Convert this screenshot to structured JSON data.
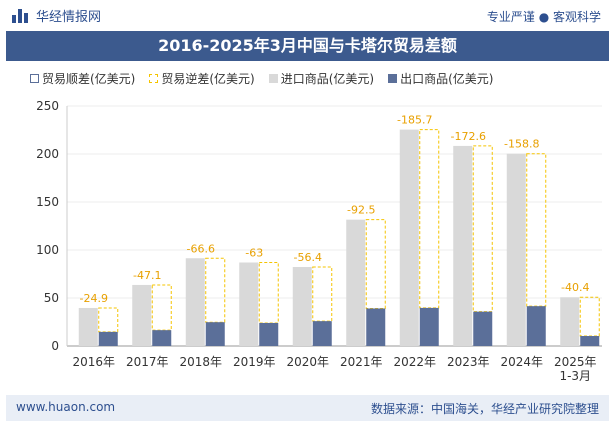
{
  "header": {
    "brand": "华经情报网",
    "tagline": "专业严谨 ● 客观科学",
    "title": "2016-2025年3月中国与卡塔尔贸易差额"
  },
  "footer": {
    "website": "www.huaon.com",
    "source": "数据来源：中国海关，华经产业研究院整理"
  },
  "colors": {
    "header_bar": "#3c5a8e",
    "import_bar": "#d9d9d9",
    "export_bar": "#5b6f99",
    "deficit_dash": "#f5c400",
    "label_text": "#e8a000"
  },
  "chart_data": {
    "type": "bar",
    "title": "2016-2025年3月中国与卡塔尔贸易差额",
    "categories": [
      "2016年",
      "2017年",
      "2018年",
      "2019年",
      "2020年",
      "2021年",
      "2022年",
      "2023年",
      "2024年",
      "2025年\n1-3月"
    ],
    "yticks": [
      0,
      50,
      100,
      150,
      200,
      250
    ],
    "ylim": [
      0,
      250
    ],
    "legend_position": "top",
    "series": [
      {
        "name": "贸易顺差(亿美元)",
        "values": [
          null,
          null,
          null,
          null,
          null,
          null,
          null,
          null,
          null,
          null
        ]
      },
      {
        "name": "贸易逆差(亿美元)",
        "values": [
          -24.9,
          -47.1,
          -66.6,
          -63,
          -56.4,
          -92.5,
          -185.7,
          -172.6,
          -158.8,
          -40.4
        ]
      },
      {
        "name": "进口商品(亿美元)",
        "values": [
          39.6,
          63.6,
          91.4,
          87.0,
          82.3,
          131.6,
          225.4,
          208.4,
          200.3,
          50.8
        ]
      },
      {
        "name": "出口商品(亿美元)",
        "values": [
          14.7,
          16.5,
          24.8,
          24.0,
          25.9,
          39.1,
          39.7,
          35.8,
          41.5,
          10.4
        ]
      }
    ],
    "data_labels": [
      "-24.9",
      "-47.1",
      "-66.6",
      "-63",
      "-56.4",
      "-92.5",
      "-185.7",
      "-172.6",
      "-158.8",
      "-40.4"
    ]
  }
}
